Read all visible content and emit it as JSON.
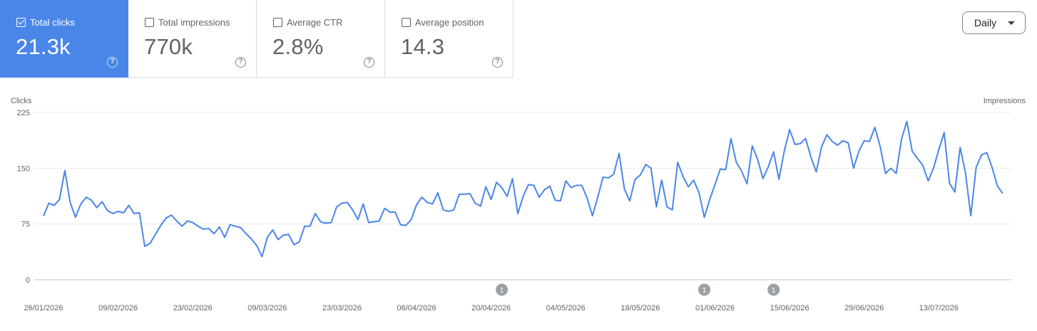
{
  "metrics": [
    {
      "label": "Total clicks",
      "value": "21.3k",
      "checked": true
    },
    {
      "label": "Total impressions",
      "value": "770k",
      "checked": false
    },
    {
      "label": "Average CTR",
      "value": "2.8%",
      "checked": false
    },
    {
      "label": "Average position",
      "value": "14.3",
      "checked": false
    }
  ],
  "help_glyph": "?",
  "period_select": {
    "value": "Daily"
  },
  "chart_data": {
    "type": "line",
    "left_axis_label": "Clicks",
    "right_axis_label": "Impressions",
    "y_ticks": [
      225,
      150,
      75,
      0
    ],
    "ylim": [
      0,
      225
    ],
    "x_tick_labels": [
      "26/01/2026",
      "09/02/2026",
      "23/02/2026",
      "09/03/2026",
      "23/03/2026",
      "06/04/2026",
      "20/04/2026",
      "04/05/2026",
      "18/05/2026",
      "01/06/2026",
      "15/06/2026",
      "29/06/2026",
      "13/07/2026"
    ],
    "annotation_dates": [
      "22/04/2026",
      "30/05/2026",
      "12/06/2026"
    ],
    "annotation_label": "1",
    "grid": true,
    "series": [
      {
        "name": "Clicks",
        "color": "#4a86e8",
        "values": [
          86,
          103,
          100,
          108,
          147,
          104,
          84,
          102,
          111,
          107,
          97,
          105,
          93,
          89,
          92,
          90,
          100,
          89,
          90,
          45,
          49,
          61,
          73,
          83,
          87,
          79,
          72,
          79,
          77,
          72,
          68,
          69,
          62,
          71,
          57,
          74,
          72,
          70,
          62,
          55,
          46,
          31,
          57,
          67,
          54,
          60,
          61,
          47,
          51,
          72,
          72,
          89,
          78,
          76,
          77,
          98,
          103,
          104,
          94,
          81,
          102,
          77,
          78,
          79,
          96,
          91,
          91,
          74,
          73,
          81,
          101,
          111,
          104,
          102,
          117,
          94,
          92,
          94,
          115,
          115,
          116,
          103,
          99,
          125,
          108,
          131,
          124,
          112,
          136,
          89,
          112,
          128,
          127,
          111,
          121,
          126,
          107,
          106,
          133,
          124,
          127,
          127,
          110,
          86,
          111,
          138,
          137,
          142,
          170,
          122,
          106,
          135,
          141,
          155,
          150,
          98,
          134,
          98,
          94,
          158,
          139,
          125,
          134,
          117,
          84,
          108,
          128,
          149,
          148,
          190,
          158,
          146,
          129,
          180,
          162,
          136,
          152,
          172,
          135,
          173,
          202,
          182,
          183,
          190,
          165,
          145,
          179,
          195,
          186,
          181,
          187,
          184,
          150,
          173,
          187,
          186,
          205,
          179,
          143,
          150,
          143,
          189,
          213,
          173,
          163,
          154,
          133,
          150,
          175,
          198,
          130,
          118,
          178,
          144,
          86,
          151,
          168,
          171,
          151,
          126,
          116
        ]
      }
    ]
  }
}
